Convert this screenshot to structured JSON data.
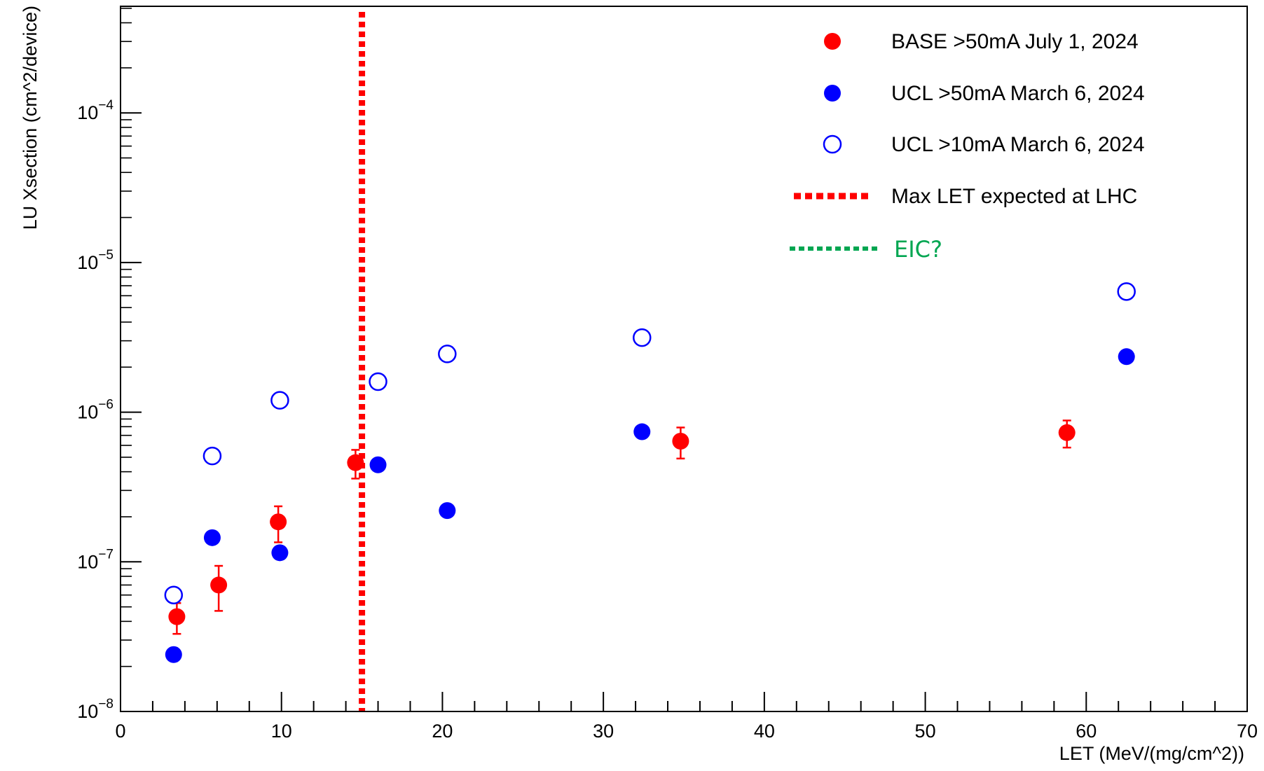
{
  "chart_data": {
    "type": "scatter",
    "xlabel": "LET (MeV/(mg/cm^2))",
    "ylabel": "LU Xsection (cm^2/device)",
    "xlim": [
      0,
      70
    ],
    "ylim": [
      1e-08,
      0.0005
    ],
    "yscale": "log",
    "grid": false,
    "legend_position": "top-right",
    "x_ticks": [
      {
        "value": 0,
        "label": "0"
      },
      {
        "value": 10,
        "label": "10"
      },
      {
        "value": 20,
        "label": "20"
      },
      {
        "value": 30,
        "label": "30"
      },
      {
        "value": 40,
        "label": "40"
      },
      {
        "value": 50,
        "label": "50"
      },
      {
        "value": 60,
        "label": "60"
      },
      {
        "value": 70,
        "label": "70"
      }
    ],
    "y_ticks": [
      {
        "value": 1e-08,
        "base": "10",
        "exp": "−8"
      },
      {
        "value": 1e-07,
        "base": "10",
        "exp": "−7"
      },
      {
        "value": 1e-06,
        "base": "10",
        "exp": "−6"
      },
      {
        "value": 1e-05,
        "base": "10",
        "exp": "−5"
      },
      {
        "value": 0.0001,
        "base": "10",
        "exp": "−4"
      }
    ],
    "series": [
      {
        "name": "BASE >50mA July 1, 2024",
        "color": "#ff0000",
        "marker": "filled-circle",
        "points": [
          {
            "x": 3.5,
            "y": 4.3e-08,
            "err_low": 3.3e-08,
            "err_high": 5.3e-08
          },
          {
            "x": 6.1,
            "y": 7e-08,
            "err_low": 4.7e-08,
            "err_high": 9.4e-08
          },
          {
            "x": 9.8,
            "y": 1.85e-07,
            "err_low": 1.35e-07,
            "err_high": 2.35e-07
          },
          {
            "x": 14.6,
            "y": 4.6e-07,
            "err_low": 3.6e-07,
            "err_high": 5.6e-07
          },
          {
            "x": 34.8,
            "y": 6.4e-07,
            "err_low": 4.9e-07,
            "err_high": 7.9e-07
          },
          {
            "x": 58.8,
            "y": 7.3e-07,
            "err_low": 5.8e-07,
            "err_high": 8.8e-07
          }
        ]
      },
      {
        "name": "UCL >50mA March 6, 2024",
        "color": "#0000ff",
        "marker": "filled-circle",
        "points": [
          {
            "x": 3.3,
            "y": 2.4e-08
          },
          {
            "x": 5.7,
            "y": 1.45e-07
          },
          {
            "x": 9.9,
            "y": 1.15e-07
          },
          {
            "x": 16.0,
            "y": 4.45e-07
          },
          {
            "x": 20.3,
            "y": 2.2e-07
          },
          {
            "x": 32.4,
            "y": 7.4e-07
          },
          {
            "x": 62.5,
            "y": 2.35e-06
          }
        ]
      },
      {
        "name": "UCL >10mA March 6, 2024",
        "color": "#0000ff",
        "marker": "open-circle",
        "points": [
          {
            "x": 3.3,
            "y": 6e-08
          },
          {
            "x": 5.7,
            "y": 5.1e-07
          },
          {
            "x": 9.9,
            "y": 1.2e-06
          },
          {
            "x": 16.0,
            "y": 1.6e-06
          },
          {
            "x": 20.3,
            "y": 2.45e-06
          },
          {
            "x": 32.4,
            "y": 3.15e-06
          },
          {
            "x": 62.5,
            "y": 6.4e-06
          }
        ]
      }
    ],
    "reference_lines": [
      {
        "name": "Max LET expected at LHC",
        "x": 15,
        "color": "#ff0000",
        "style": "dotted"
      }
    ],
    "legend_extra": [
      {
        "name": "EIC?",
        "color": "#00a651",
        "style": "dotted"
      }
    ]
  }
}
